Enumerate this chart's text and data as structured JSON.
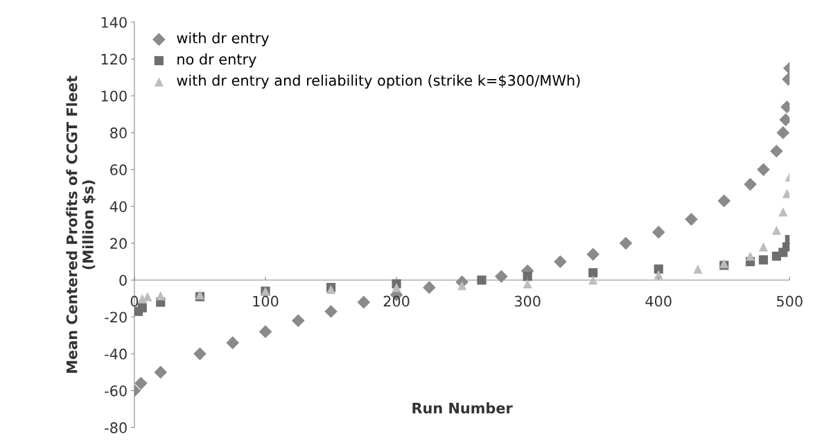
{
  "chart_data": {
    "type": "scatter",
    "xlabel": "Run Number",
    "ylabel": "Mean Centered Profits of CCGT Fleet\n(Million $s)",
    "xlim": [
      0,
      500
    ],
    "xticks": [
      0,
      100,
      200,
      300,
      400,
      500
    ],
    "ylim": [
      -80,
      140
    ],
    "yticks": [
      -80,
      -60,
      -40,
      -20,
      0,
      20,
      40,
      60,
      80,
      100,
      120,
      140
    ],
    "grid": false,
    "legend": "top left",
    "series": [
      {
        "name": "with dr entry",
        "color": "#8a8a8a",
        "marker": "diamond",
        "x": [
          0,
          5,
          20,
          50,
          75,
          100,
          125,
          150,
          175,
          200,
          225,
          250,
          280,
          300,
          325,
          350,
          375,
          400,
          425,
          450,
          470,
          480,
          490,
          495,
          497,
          498,
          499,
          500
        ],
        "values": [
          -60,
          -56,
          -50,
          -40,
          -34,
          -28,
          -22,
          -17,
          -12,
          -8,
          -4,
          -1,
          2,
          5,
          10,
          14,
          20,
          26,
          33,
          43,
          52,
          60,
          70,
          80,
          87,
          94,
          109,
          115
        ]
      },
      {
        "name": "no dr entry",
        "color": "#6e6e6e",
        "marker": "square",
        "x": [
          3,
          6,
          20,
          50,
          100,
          150,
          200,
          265,
          300,
          350,
          400,
          450,
          470,
          480,
          490,
          495,
          498,
          500
        ],
        "values": [
          -17,
          -15,
          -12,
          -9,
          -6,
          -4,
          -2,
          0,
          2,
          4,
          6,
          8,
          10,
          11,
          13,
          15,
          18,
          22
        ]
      },
      {
        "name": "with dr entry and reliability option (strike k=$300/MWh)",
        "color": "#bdbdbd",
        "marker": "triangle",
        "x": [
          6,
          10,
          20,
          50,
          100,
          150,
          200,
          250,
          300,
          350,
          400,
          430,
          450,
          470,
          480,
          490,
          495,
          498,
          500
        ],
        "values": [
          -10,
          -9,
          -8.5,
          -8,
          -6,
          -5,
          -4,
          -3,
          -2,
          0,
          3,
          6,
          9,
          13,
          18,
          27,
          37,
          47,
          56
        ]
      }
    ]
  }
}
